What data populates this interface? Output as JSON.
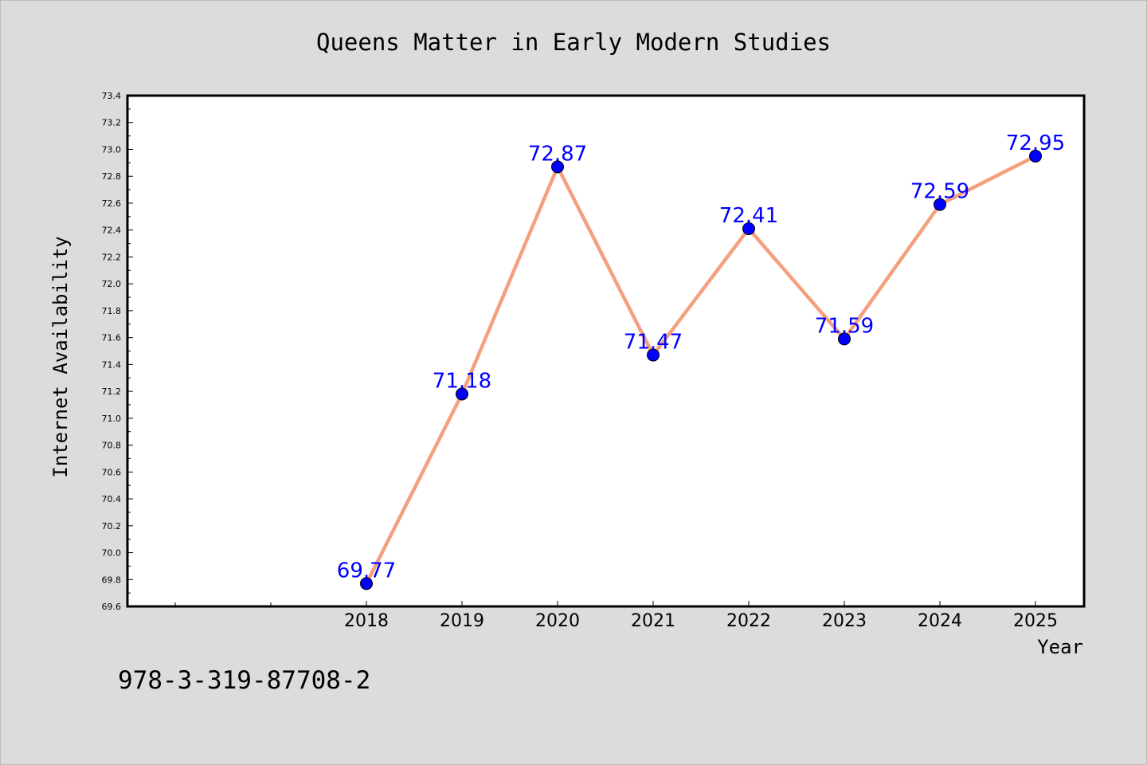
{
  "isbn": "978-3-319-87708-2",
  "colors": {
    "background": "#dcdcdc",
    "plot_background": "#ffffff",
    "line": "#f4a07e",
    "marker": "#0000ff",
    "data_label": "#0000ff"
  },
  "chart_data": {
    "type": "line",
    "title": "Queens Matter in Early Modern Studies",
    "xlabel": "Year",
    "ylabel": "Internet Availability",
    "categories": [
      "2018",
      "2019",
      "2020",
      "2021",
      "2022",
      "2023",
      "2024",
      "2025"
    ],
    "x_ticks_unlabeled": 2,
    "series": [
      {
        "values": [
          69.77,
          71.18,
          72.87,
          71.47,
          72.41,
          71.59,
          72.59,
          72.95
        ]
      }
    ],
    "data_labels": [
      "69.77",
      "71.18",
      "72.87",
      "71.47",
      "72.41",
      "71.59",
      "72.59",
      "72.95"
    ],
    "ylim": [
      69.6,
      73.4
    ],
    "y_major_ticks": [
      "69.6",
      "69.8",
      "70.0",
      "70.2",
      "70.4",
      "70.6",
      "70.8",
      "71.0",
      "71.2",
      "71.4",
      "71.6",
      "71.8",
      "72.0",
      "72.2",
      "72.4",
      "72.6",
      "72.8",
      "73.0",
      "73.2",
      "73.4"
    ],
    "grid": false,
    "legend": "none"
  }
}
